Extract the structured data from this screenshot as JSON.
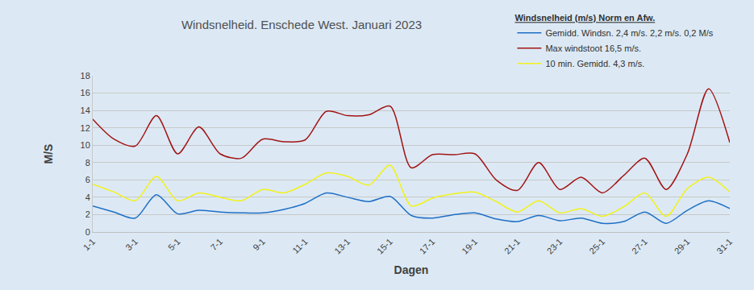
{
  "chart_data": {
    "type": "line",
    "title": "Windsnelheid. Enschede West. Januari 2023",
    "x_label": "Dagen",
    "y_label": "M/S",
    "legend_title": "Windsnelheid (m/s) Norm en Afw.",
    "categories": [
      "1-1",
      null,
      "3-1",
      null,
      "5-1",
      null,
      "7-1",
      null,
      "9-1",
      null,
      "11-1",
      null,
      "13-1",
      null,
      "15-1",
      null,
      "17-1",
      null,
      "19-1",
      null,
      "21-1",
      null,
      "23-1",
      null,
      "25-1",
      null,
      "27-1",
      null,
      "29-1",
      null,
      "31-1"
    ],
    "series": [
      {
        "name": "Gemidd. Windsn. 2,4 m/s. 2,2 m/s. 0,2 M/s",
        "color": "#1f6fc5",
        "line_style": "smooth",
        "values": [
          3.0,
          2.3,
          1.6,
          4.3,
          2.1,
          2.5,
          2.3,
          2.2,
          2.2,
          2.6,
          3.3,
          4.5,
          4.0,
          3.5,
          4.1,
          1.9,
          1.6,
          2.0,
          2.2,
          1.5,
          1.2,
          1.9,
          1.3,
          1.6,
          1.0,
          1.2,
          2.3,
          1.0,
          2.5,
          3.6,
          2.7
        ]
      },
      {
        "name": "Max windstoot 16,5 m/s.",
        "color": "#a31515",
        "line_style": "smooth",
        "values": [
          13.0,
          10.7,
          9.9,
          13.4,
          9.0,
          12.1,
          9.0,
          8.5,
          10.7,
          10.4,
          10.6,
          13.9,
          13.4,
          13.5,
          14.5,
          7.4,
          8.9,
          8.9,
          9.0,
          6.0,
          4.8,
          8.0,
          4.9,
          6.3,
          4.5,
          6.5,
          8.5,
          4.9,
          9.0,
          16.5,
          10.3
        ]
      },
      {
        "name": "10 min. Gemidd. 4,3 m/s.",
        "color": "#f2f21a",
        "line_style": "smooth",
        "values": [
          5.5,
          4.6,
          3.6,
          6.4,
          3.6,
          4.5,
          4.0,
          3.6,
          4.9,
          4.5,
          5.5,
          6.8,
          6.4,
          5.4,
          7.7,
          3.0,
          3.9,
          4.4,
          4.6,
          3.5,
          2.3,
          3.6,
          2.2,
          2.7,
          1.8,
          2.9,
          4.5,
          1.8,
          5.0,
          6.3,
          4.6
        ]
      }
    ],
    "ylim": [
      0,
      18
    ],
    "yticks": [
      0,
      2,
      4,
      6,
      8,
      10,
      12,
      14,
      16,
      18
    ],
    "grid": true,
    "legend": "top right"
  }
}
